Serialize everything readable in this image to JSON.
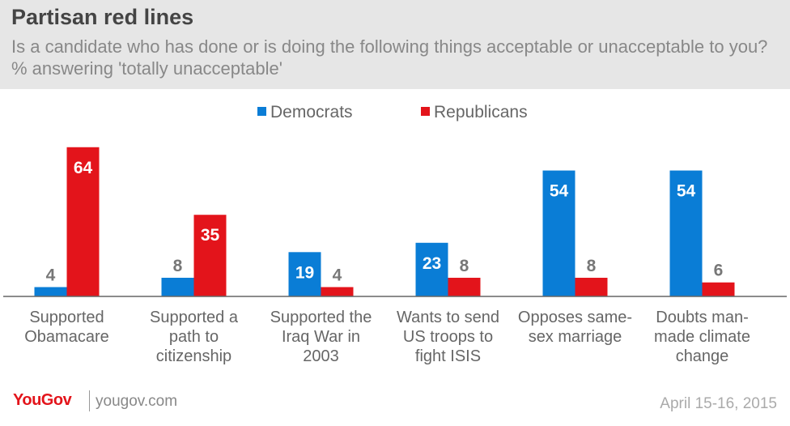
{
  "header": {
    "title": "Partisan red lines",
    "subtitle": "Is a candidate who has done or is doing the following things acceptable or unacceptable to you? % answering 'totally unacceptable'"
  },
  "footer": {
    "logo": "YouGov",
    "site": "yougov.com",
    "date": "April 15-16, 2015"
  },
  "colors": {
    "democrats": "#0a7dd6",
    "republicans": "#e3141b"
  },
  "chart_data": {
    "type": "bar",
    "categories": [
      [
        "Supported",
        "Obamacare"
      ],
      [
        "Supported a",
        "path to",
        "citizenship"
      ],
      [
        "Supported the",
        "Iraq War in",
        "2003"
      ],
      [
        "Wants to send",
        "US troops to",
        "fight ISIS"
      ],
      [
        "Opposes same-",
        "sex marriage"
      ],
      [
        "Doubts man-",
        "made climate",
        "change"
      ]
    ],
    "series": [
      {
        "name": "Democrats",
        "values": [
          4,
          8,
          19,
          23,
          54,
          54
        ]
      },
      {
        "name": "Republicans",
        "values": [
          64,
          35,
          4,
          8,
          8,
          6
        ]
      }
    ],
    "ylim": [
      0,
      66
    ],
    "legend_position": "top-center",
    "grid": false
  }
}
